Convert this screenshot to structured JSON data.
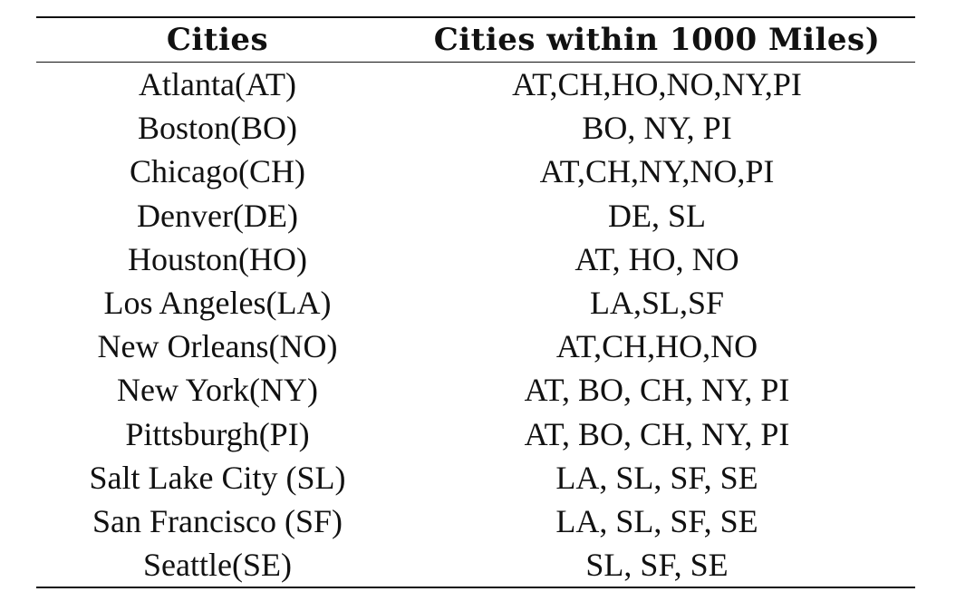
{
  "table": {
    "headers": [
      "Cities",
      "Cities within 1000 Miles)"
    ],
    "rows": [
      [
        "Atlanta(AT)",
        "AT,CH,HO,NO,NY,PI"
      ],
      [
        "Boston(BO)",
        "BO, NY, PI"
      ],
      [
        "Chicago(CH)",
        "AT,CH,NY,NO,PI"
      ],
      [
        "Denver(DE)",
        "DE, SL"
      ],
      [
        "Houston(HO)",
        "AT, HO, NO"
      ],
      [
        "Los Angeles(LA)",
        "LA,SL,SF"
      ],
      [
        "New Orleans(NO)",
        "AT,CH,HO,NO"
      ],
      [
        "New York(NY)",
        "AT, BO, CH, NY, PI"
      ],
      [
        "Pittsburgh(PI)",
        "AT, BO, CH, NY, PI"
      ],
      [
        "Salt Lake City (SL)",
        "LA, SL, SF, SE"
      ],
      [
        "San Francisco (SF)",
        "LA, SL, SF, SE"
      ],
      [
        "Seattle(SE)",
        "SL, SF, SE"
      ]
    ]
  }
}
